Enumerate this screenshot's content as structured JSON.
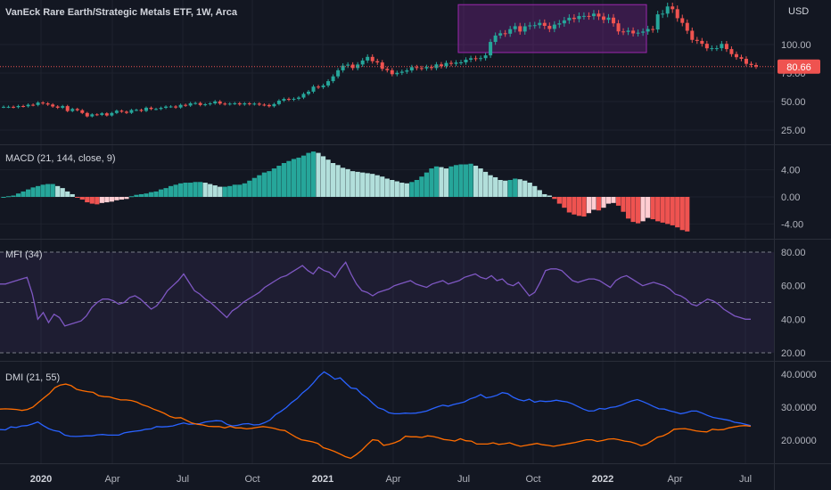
{
  "header": {
    "title": "VanEck Rare Earth/Strategic Metals ETF, 1W, Arca",
    "currency": "USD",
    "last_price": "80.66"
  },
  "colors": {
    "background": "#131722",
    "up": "#26a69a",
    "down": "#ef5350",
    "light": "#b2dfdb",
    "mfi_line": "#7e57c2",
    "plus_di": "#2962ff",
    "minus_di": "#ff6d00",
    "highlight": "#9c27b0"
  },
  "chart_data": [
    {
      "type": "candlestick",
      "pane": "price",
      "yticks": [
        "100.00",
        "75.00",
        "50.00",
        "25.00"
      ],
      "ytick_values": [
        100,
        75,
        50,
        25
      ],
      "last_price": 80.66,
      "highlight_box": {
        "x_start": "2021-07",
        "x_end": "2022-03",
        "y_low": 93,
        "y_high": 135
      },
      "x_range": [
        "2019-10",
        "2022-07"
      ],
      "closes": [
        45.4,
        45.4,
        45.1,
        46.1,
        45.9,
        47.2,
        47.0,
        49.1,
        48.4,
        47.4,
        45.7,
        44.6,
        46.0,
        41.7,
        43.5,
        42.4,
        40.0,
        37.0,
        38.8,
        38.3,
        39.7,
        37.8,
        40.0,
        42.0,
        41.1,
        40.1,
        42.6,
        42.7,
        41.8,
        44.6,
        43.5,
        43.5,
        44.5,
        45.6,
        45.7,
        44.8,
        47.1,
        46.5,
        48.5,
        48.7,
        47.0,
        47.6,
        48.4,
        50.1,
        48.2,
        47.7,
        48.2,
        48.5,
        47.5,
        48.4,
        47.7,
        48.2,
        47.3,
        47.0,
        45.9,
        47.8,
        50.8,
        52.3,
        51.7,
        52.4,
        53.5,
        56.7,
        58.7,
        63.1,
        62.6,
        64.1,
        67.9,
        72.1,
        77.4,
        81.5,
        82.4,
        79.4,
        82.5,
        86.0,
        89.2,
        85.4,
        84.3,
        78.7,
        77.5,
        74.0,
        75.2,
        76.2,
        77.3,
        80.2,
        79.4,
        79.1,
        80.3,
        79.4,
        82.6,
        81.0,
        83.9,
        83.1,
        84.2,
        84.4,
        86.7,
        88.0,
        87.5,
        88.1,
        90.5,
        102.3,
        107.9,
        109.9,
        109.5,
        113.5,
        116.1,
        111.4,
        116.0,
        116.8,
        117.0,
        119.0,
        116.4,
        113.7,
        117.5,
        118.6,
        121.2,
        123.5,
        122.4,
        125.0,
        125.1,
        124.9,
        127.1,
        124.6,
        121.7,
        123.6,
        118.6,
        111.5,
        111.1,
        112.2,
        109.8,
        110.4,
        111.4,
        113.6,
        113.2,
        126.5,
        127.1,
        133.4,
        131.0,
        123.1,
        119.0,
        112.1,
        104.1,
        103.2,
        100.7,
        96.7,
        96.8,
        96.8,
        100.6,
        96.0,
        91.6,
        88.9,
        87.5,
        83.1,
        82.0,
        80.7
      ]
    },
    {
      "type": "histogram",
      "pane": "macd",
      "title": "MACD (21, 144, close, 9)",
      "yticks": [
        "4.00",
        "0.00",
        "-4.00"
      ],
      "ytick_values": [
        4,
        0,
        -4
      ],
      "values": [
        0.0,
        0.1,
        0.2,
        0.5,
        0.8,
        1.1,
        1.4,
        1.6,
        1.8,
        1.9,
        1.9,
        1.6,
        1.3,
        0.8,
        0.4,
        -0.1,
        -0.4,
        -0.8,
        -1.0,
        -1.1,
        -0.9,
        -0.8,
        -0.7,
        -0.5,
        -0.4,
        -0.3,
        0.1,
        0.3,
        0.4,
        0.5,
        0.7,
        0.8,
        1.1,
        1.3,
        1.6,
        1.8,
        2.0,
        2.1,
        2.1,
        2.2,
        2.2,
        2.1,
        1.9,
        1.7,
        1.5,
        1.5,
        1.6,
        1.8,
        1.8,
        2.0,
        2.4,
        2.8,
        3.2,
        3.6,
        3.8,
        4.2,
        4.6,
        5.0,
        5.3,
        5.6,
        5.8,
        6.1,
        6.5,
        6.7,
        6.5,
        6.0,
        5.5,
        5.0,
        4.7,
        4.3,
        4.1,
        3.8,
        3.7,
        3.6,
        3.5,
        3.4,
        3.2,
        3.0,
        2.7,
        2.5,
        2.3,
        2.1,
        2.0,
        2.2,
        2.5,
        3.0,
        3.6,
        4.2,
        4.5,
        4.4,
        4.2,
        4.5,
        4.7,
        4.8,
        4.8,
        4.9,
        4.6,
        4.2,
        3.7,
        3.2,
        2.9,
        2.5,
        2.4,
        2.5,
        2.7,
        2.6,
        2.4,
        2.1,
        1.6,
        1.0,
        0.4,
        0.2,
        -0.3,
        -1.0,
        -1.6,
        -2.3,
        -2.6,
        -2.8,
        -2.9,
        -2.4,
        -1.9,
        -2.0,
        -1.6,
        -1.0,
        -0.9,
        -1.3,
        -2.2,
        -3.2,
        -3.7,
        -3.9,
        -3.6,
        -3.1,
        -3.3,
        -3.6,
        -3.8,
        -4.0,
        -4.2,
        -4.5,
        -4.9,
        -5.1
      ]
    },
    {
      "type": "line",
      "pane": "mfi",
      "title": "MFI (34)",
      "yticks": [
        "80.00",
        "60.00",
        "40.00",
        "20.00"
      ],
      "ytick_values": [
        80,
        60,
        40,
        20
      ],
      "bands": [
        80,
        50,
        20
      ],
      "values": [
        61,
        61,
        62,
        63,
        64,
        65,
        55,
        40,
        44,
        38,
        43,
        41,
        36,
        37,
        38,
        39,
        42,
        47,
        50,
        52,
        52,
        51,
        49,
        50,
        53,
        54,
        52,
        49,
        46,
        48,
        52,
        57,
        60,
        63,
        67,
        62,
        57,
        55,
        52,
        50,
        47,
        44,
        41,
        45,
        47,
        50,
        52,
        54,
        56,
        59,
        61,
        63,
        65,
        66,
        68,
        70,
        72,
        69,
        67,
        71,
        69,
        68,
        65,
        70,
        74,
        67,
        61,
        57,
        56,
        54,
        56,
        57,
        58,
        60,
        61,
        62,
        63,
        61,
        60,
        59,
        61,
        62,
        63,
        61,
        62,
        63,
        65,
        66,
        67,
        65,
        64,
        66,
        63,
        64,
        61,
        60,
        62,
        58,
        54,
        56,
        62,
        69,
        70,
        70,
        69,
        66,
        63,
        62,
        63,
        64,
        64,
        63,
        61,
        59,
        63,
        65,
        66,
        64,
        62,
        60,
        61,
        62,
        61,
        60,
        58,
        55,
        54,
        52,
        49,
        48,
        50,
        52,
        51,
        49,
        46,
        44,
        42,
        41,
        40,
        40
      ]
    },
    {
      "type": "line",
      "pane": "dmi",
      "title": "DMI (21, 55)",
      "yticks": [
        "40.0000",
        "30.0000",
        "20.0000"
      ],
      "ytick_values": [
        40,
        30,
        20
      ],
      "series": [
        {
          "name": "+DI",
          "values": [
            23.2,
            23.1,
            24.0,
            23.8,
            24.3,
            24.4,
            24.9,
            25.5,
            24.4,
            23.5,
            22.9,
            22.6,
            21.5,
            21.2,
            21.1,
            21.2,
            21.3,
            21.3,
            21.6,
            21.7,
            21.5,
            21.5,
            21.5,
            22.2,
            22.5,
            22.7,
            22.9,
            23.3,
            23.4,
            24.1,
            24.0,
            24.1,
            24.3,
            24.8,
            25.2,
            24.8,
            24.9,
            25.0,
            25.5,
            25.7,
            25.9,
            25.8,
            24.8,
            24.3,
            24.5,
            24.9,
            25.0,
            24.6,
            24.7,
            25.3,
            26.1,
            27.7,
            28.7,
            29.9,
            31.4,
            32.6,
            34.3,
            35.6,
            37.3,
            39.3,
            40.7,
            39.7,
            38.5,
            38.9,
            37.3,
            35.8,
            35.6,
            33.9,
            32.8,
            31.2,
            29.8,
            29.3,
            28.3,
            28.0,
            28.0,
            28.2,
            28.1,
            28.2,
            28.5,
            28.8,
            29.5,
            30.1,
            30.6,
            30.3,
            30.8,
            31.2,
            31.6,
            32.5,
            33.0,
            33.8,
            32.8,
            33.1,
            33.6,
            34.4,
            34.1,
            33.0,
            32.3,
            31.9,
            32.4,
            31.5,
            31.9,
            31.7,
            31.8,
            32.1,
            31.8,
            31.6,
            31.0,
            30.2,
            29.4,
            28.8,
            28.9,
            29.6,
            29.4,
            29.9,
            30.1,
            30.6,
            31.3,
            31.9,
            32.3,
            31.7,
            31.0,
            30.2,
            29.5,
            29.4,
            28.9,
            28.5,
            28.0,
            28.3,
            28.8,
            28.8,
            28.2,
            27.5,
            26.9,
            26.6,
            26.3,
            26.0,
            25.4,
            25.2,
            24.8,
            24.4
          ]
        },
        {
          "name": "-DI",
          "values": [
            29.4,
            29.5,
            29.4,
            29.3,
            29.0,
            29.3,
            30.0,
            31.4,
            32.8,
            34.1,
            35.9,
            36.7,
            37.0,
            36.5,
            35.4,
            35.0,
            34.7,
            34.5,
            33.5,
            33.2,
            33.1,
            32.6,
            32.2,
            32.2,
            32.0,
            31.5,
            30.7,
            30.2,
            29.4,
            28.8,
            28.1,
            27.2,
            26.7,
            26.8,
            26.0,
            25.2,
            24.8,
            24.6,
            24.2,
            24.1,
            24.1,
            23.7,
            24.2,
            23.7,
            23.7,
            23.4,
            23.6,
            23.9,
            24.1,
            23.9,
            23.6,
            23.1,
            22.9,
            21.9,
            20.9,
            20.1,
            19.8,
            19.5,
            19.0,
            17.7,
            17.2,
            16.6,
            15.8,
            15.0,
            14.5,
            15.6,
            16.9,
            18.6,
            20.1,
            19.9,
            18.4,
            18.7,
            19.2,
            19.9,
            21.2,
            21.0,
            21.0,
            20.8,
            21.3,
            21.1,
            20.7,
            20.2,
            20.0,
            19.7,
            20.4,
            19.8,
            19.7,
            18.8,
            18.8,
            18.8,
            19.2,
            18.7,
            18.9,
            19.2,
            18.6,
            18.1,
            18.4,
            18.7,
            19.0,
            18.6,
            18.4,
            18.1,
            18.4,
            18.7,
            19.0,
            19.3,
            19.7,
            20.1,
            20.1,
            19.6,
            19.9,
            20.3,
            20.4,
            20.1,
            19.7,
            19.5,
            19.0,
            18.3,
            18.8,
            19.8,
            20.9,
            21.3,
            22.1,
            23.3,
            23.4,
            23.5,
            23.2,
            22.8,
            22.6,
            22.5,
            23.3,
            23.1,
            23.2,
            23.7,
            24.0,
            24.3,
            24.4,
            24.2
          ]
        }
      ]
    }
  ],
  "x_axis": {
    "labels": [
      {
        "text": "2020",
        "bold": true
      },
      {
        "text": "Apr",
        "bold": false
      },
      {
        "text": "Jul",
        "bold": false
      },
      {
        "text": "Oct",
        "bold": false
      },
      {
        "text": "2021",
        "bold": true
      },
      {
        "text": "Apr",
        "bold": false
      },
      {
        "text": "Jul",
        "bold": false
      },
      {
        "text": "Oct",
        "bold": false
      },
      {
        "text": "2022",
        "bold": true
      },
      {
        "text": "Apr",
        "bold": false
      },
      {
        "text": "Jul",
        "bold": false
      }
    ]
  }
}
